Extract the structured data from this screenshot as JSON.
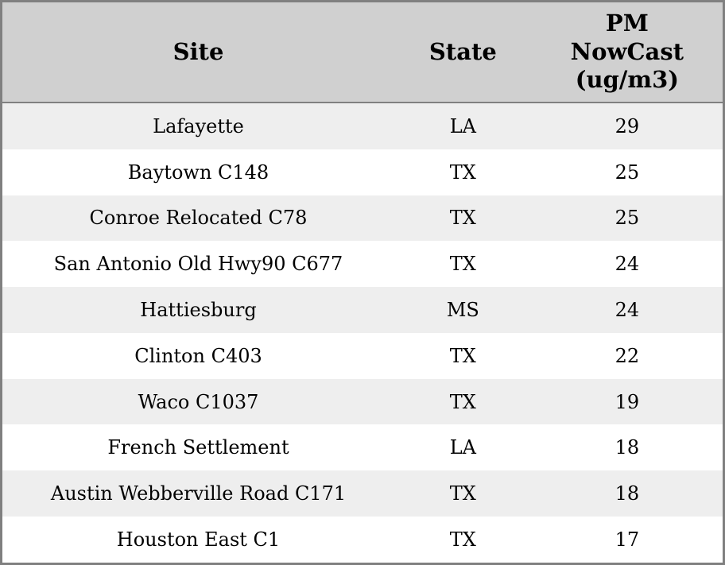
{
  "table": {
    "columns": [
      {
        "key": "site",
        "label": "Site"
      },
      {
        "key": "state",
        "label": "State"
      },
      {
        "key": "pm_nowcast",
        "label": [
          "PM",
          "NowCast",
          "(ug/m3)"
        ]
      }
    ],
    "rows": [
      {
        "site": "Lafayette",
        "state": "LA",
        "pm_nowcast": "29"
      },
      {
        "site": "Baytown C148",
        "state": "TX",
        "pm_nowcast": "25"
      },
      {
        "site": "Conroe Relocated C78",
        "state": "TX",
        "pm_nowcast": "25"
      },
      {
        "site": "San Antonio Old Hwy90 C677",
        "state": "TX",
        "pm_nowcast": "24"
      },
      {
        "site": "Hattiesburg",
        "state": "MS",
        "pm_nowcast": "24"
      },
      {
        "site": "Clinton C403",
        "state": "TX",
        "pm_nowcast": "22"
      },
      {
        "site": "Waco C1037",
        "state": "TX",
        "pm_nowcast": "19"
      },
      {
        "site": "French Settlement",
        "state": "LA",
        "pm_nowcast": "18"
      },
      {
        "site": "Austin Webberville Road C171",
        "state": "TX",
        "pm_nowcast": "18"
      },
      {
        "site": "Houston East C1",
        "state": "TX",
        "pm_nowcast": "17"
      }
    ]
  },
  "colors": {
    "header_background": "#d0d0d0",
    "border": "#808080",
    "stripe_odd": "#eeeeee",
    "stripe_even": "#ffffff",
    "text": "#000000"
  },
  "chart_data": {
    "type": "table",
    "title": "",
    "columns": [
      "Site",
      "State",
      "PM NowCast (ug/m3)"
    ],
    "rows": [
      [
        "Lafayette",
        "LA",
        29
      ],
      [
        "Baytown C148",
        "TX",
        25
      ],
      [
        "Conroe Relocated C78",
        "TX",
        25
      ],
      [
        "San Antonio Old Hwy90 C677",
        "TX",
        24
      ],
      [
        "Hattiesburg",
        "MS",
        24
      ],
      [
        "Clinton C403",
        "TX",
        22
      ],
      [
        "Waco C1037",
        "TX",
        19
      ],
      [
        "French Settlement",
        "LA",
        18
      ],
      [
        "Austin Webberville Road C171",
        "TX",
        18
      ],
      [
        "Houston East C1",
        "TX",
        17
      ]
    ],
    "layout_hints": {
      "striped_rows": true,
      "all_cells_center_aligned": true,
      "header_bold": true
    }
  }
}
